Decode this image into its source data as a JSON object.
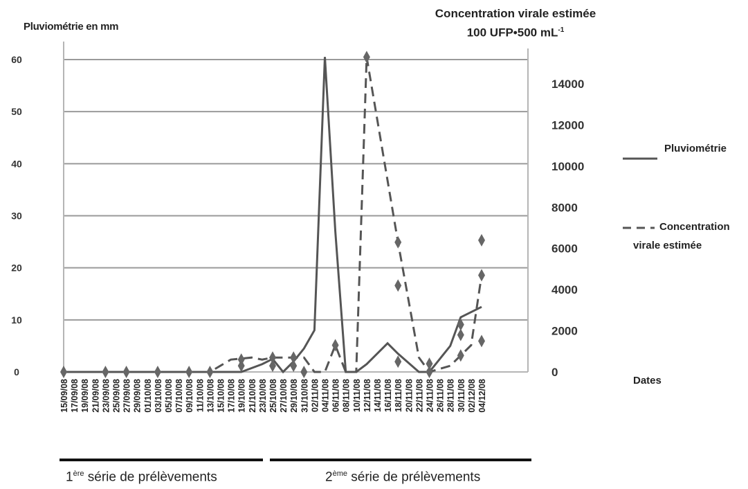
{
  "left_axis_title": "Pluviométrie en mm",
  "right_axis_title_line1": "Concentration virale estimée",
  "right_axis_unit": {
    "base": "100 UFP•500 mL",
    "exp": "-1"
  },
  "legend": {
    "rain": "Pluviométrie",
    "virus_line1": "Concentration",
    "virus_line2": "virale estimée"
  },
  "x_axis_title": "Dates",
  "sampling_series": [
    {
      "ordinal": "1",
      "sup": "ère",
      "text": " série  de prélèvements"
    },
    {
      "ordinal": "2",
      "sup": "ème",
      "text": " série  de prélèvements"
    }
  ],
  "colors": {
    "rain": "#555555",
    "virus": "#555555",
    "grid": "#9a9a9a",
    "marker": "#666666"
  },
  "chart_data": {
    "type": "line",
    "x_axis_title": "Dates",
    "dates": [
      "15/09/08",
      "17/09/08",
      "19/09/08",
      "21/09/08",
      "23/09/08",
      "25/09/08",
      "27/09/08",
      "29/09/08",
      "01/10/08",
      "03/10/08",
      "05/10/08",
      "07/10/08",
      "09/10/08",
      "11/10/08",
      "13/10/08",
      "15/10/08",
      "17/10/08",
      "19/10/08",
      "21/10/08",
      "23/10/08",
      "25/10/08",
      "27/10/08",
      "29/10/08",
      "31/10/08",
      "02/11/08",
      "04/11/08",
      "06/11/08",
      "08/11/08",
      "10/11/08",
      "12/11/08",
      "14/11/08",
      "16/11/08",
      "18/11/08",
      "20/11/08",
      "22/11/08",
      "24/11/08",
      "26/11/08",
      "28/11/08",
      "30/11/08",
      "02/12/08",
      "04/12/08"
    ],
    "left_axis": {
      "title": "Pluviométrie en mm",
      "range": [
        0,
        60
      ],
      "ticks": [
        0,
        10,
        20,
        30,
        40,
        50,
        60
      ]
    },
    "right_axis": {
      "title": "Concentration virale estimée 100 UFP•500 mL-1",
      "range": [
        0,
        15000
      ],
      "ticks": [
        0,
        2000,
        4000,
        6000,
        8000,
        10000,
        12000,
        14000
      ]
    },
    "grid": true,
    "legend_position": "right",
    "series": [
      {
        "name": "Pluviométrie",
        "axis": "left",
        "style": "solid",
        "points": [
          [
            "15/09/08",
            0
          ],
          [
            "17/09/08",
            0
          ],
          [
            "19/09/08",
            0
          ],
          [
            "21/09/08",
            0
          ],
          [
            "23/09/08",
            0
          ],
          [
            "25/09/08",
            0
          ],
          [
            "27/09/08",
            0
          ],
          [
            "29/09/08",
            0
          ],
          [
            "01/10/08",
            0
          ],
          [
            "03/10/08",
            0
          ],
          [
            "05/10/08",
            0
          ],
          [
            "07/10/08",
            0
          ],
          [
            "09/10/08",
            0
          ],
          [
            "11/10/08",
            0
          ],
          [
            "13/10/08",
            0
          ],
          [
            "15/10/08",
            0
          ],
          [
            "17/10/08",
            0
          ],
          [
            "19/10/08",
            0
          ],
          [
            "23/10/08",
            1.5
          ],
          [
            "25/10/08",
            2.5
          ],
          [
            "27/10/08",
            0
          ],
          [
            "29/10/08",
            2
          ],
          [
            "31/10/08",
            4.5
          ],
          [
            "02/11/08",
            8
          ],
          [
            "04/11/08",
            60.5
          ],
          [
            "06/11/08",
            27
          ],
          [
            "08/11/08",
            0
          ],
          [
            "10/11/08",
            0
          ],
          [
            "12/11/08",
            1.5
          ],
          [
            "16/11/08",
            5.5
          ],
          [
            "18/11/08",
            3.5
          ],
          [
            "22/11/08",
            0
          ],
          [
            "24/11/08",
            0
          ],
          [
            "28/11/08",
            5
          ],
          [
            "30/11/08",
            10.5
          ],
          [
            "04/12/08",
            12.5
          ]
        ]
      },
      {
        "name": "Concentration virale estimée",
        "axis": "right",
        "style": "dashed",
        "points": [
          [
            "15/09/08",
            0
          ],
          [
            "17/09/08",
            0
          ],
          [
            "19/09/08",
            0
          ],
          [
            "21/09/08",
            0
          ],
          [
            "23/09/08",
            0
          ],
          [
            "25/09/08",
            0
          ],
          [
            "27/09/08",
            0
          ],
          [
            "29/09/08",
            0
          ],
          [
            "01/10/08",
            0
          ],
          [
            "03/10/08",
            0
          ],
          [
            "05/10/08",
            0
          ],
          [
            "07/10/08",
            0
          ],
          [
            "09/10/08",
            0
          ],
          [
            "11/10/08",
            0
          ],
          [
            "13/10/08",
            0
          ],
          [
            "15/10/08",
            300
          ],
          [
            "17/10/08",
            600
          ],
          [
            "21/10/08",
            700
          ],
          [
            "23/10/08",
            600
          ],
          [
            "25/10/08",
            700
          ],
          [
            "27/10/08",
            700
          ],
          [
            "31/10/08",
            700
          ],
          [
            "02/11/08",
            0
          ],
          [
            "04/11/08",
            0
          ],
          [
            "06/11/08",
            1300
          ],
          [
            "08/11/08",
            0
          ],
          [
            "10/11/08",
            0
          ],
          [
            "12/11/08",
            15300
          ],
          [
            "18/11/08",
            6300
          ],
          [
            "22/11/08",
            700
          ],
          [
            "24/11/08",
            0
          ],
          [
            "28/11/08",
            300
          ],
          [
            "30/11/08",
            800
          ],
          [
            "02/12/08",
            1300
          ],
          [
            "04/12/08",
            4700
          ]
        ]
      }
    ],
    "markers": [
      [
        "15/09/08",
        0
      ],
      [
        "23/09/08",
        0
      ],
      [
        "27/09/08",
        0
      ],
      [
        "03/10/08",
        0
      ],
      [
        "09/10/08",
        0
      ],
      [
        "13/10/08",
        0
      ],
      [
        "19/10/08",
        300
      ],
      [
        "19/10/08",
        600
      ],
      [
        "25/10/08",
        300
      ],
      [
        "25/10/08",
        700
      ],
      [
        "29/10/08",
        300
      ],
      [
        "29/10/08",
        700
      ],
      [
        "31/10/08",
        0
      ],
      [
        "06/11/08",
        1300
      ],
      [
        "12/11/08",
        15300
      ],
      [
        "18/11/08",
        6300
      ],
      [
        "18/11/08",
        4200
      ],
      [
        "18/11/08",
        500
      ],
      [
        "24/11/08",
        400
      ],
      [
        "24/11/08",
        0
      ],
      [
        "30/11/08",
        800
      ],
      [
        "30/11/08",
        1800
      ],
      [
        "30/11/08",
        2300
      ],
      [
        "04/12/08",
        6400
      ],
      [
        "04/12/08",
        4700
      ],
      [
        "04/12/08",
        1500
      ]
    ]
  }
}
